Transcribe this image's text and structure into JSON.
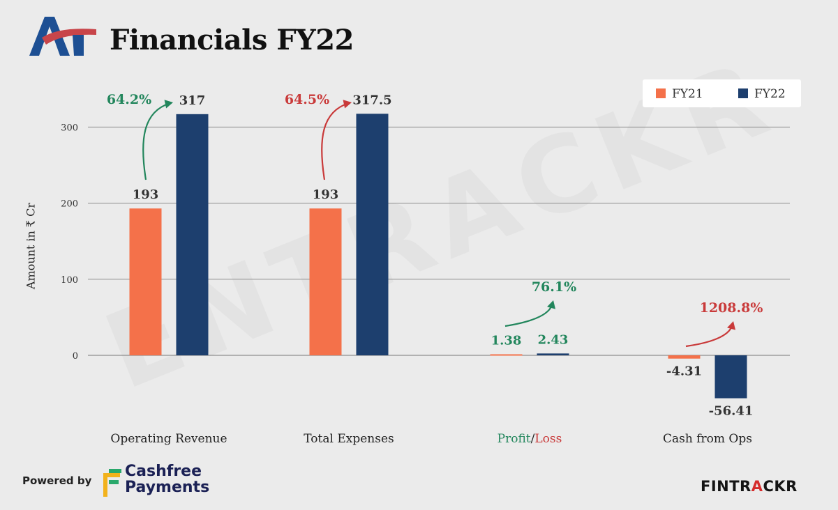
{
  "header": {
    "title": "Financials FY22",
    "logo_name": "AT"
  },
  "legend": [
    {
      "label": "FY21",
      "color": "#f4714a"
    },
    {
      "label": "FY22",
      "color": "#1d3f6e"
    }
  ],
  "footer": {
    "powered_by": "Powered by",
    "sponsor_line1": "Cashfree",
    "sponsor_line2": "Payments",
    "brand_prefix": "FINTR",
    "brand_accent": "A",
    "brand_suffix": "CKR"
  },
  "watermark": "ENTRACKR",
  "colors": {
    "fy21": "#f4714a",
    "fy22": "#1d3f6e",
    "up_good": "#22865c",
    "up_bad": "#c93a3a",
    "axis_text": "#333333"
  },
  "chart_data": {
    "type": "bar",
    "ylabel": "Amount in ₹ Cr",
    "ylim": [
      -75,
      335
    ],
    "yticks": [
      0,
      100,
      200,
      300
    ],
    "grid": true,
    "legend_position": "top-right",
    "categories": [
      "Operating Revenue",
      "Total Expenses",
      "Profit/Loss",
      "Cash from Ops"
    ],
    "series": [
      {
        "name": "FY21",
        "values": [
          193,
          193,
          1.38,
          -4.31
        ],
        "labels": [
          "193",
          "193",
          "1.38",
          "-4.31"
        ]
      },
      {
        "name": "FY22",
        "values": [
          317,
          317.5,
          2.43,
          -56.41
        ],
        "labels": [
          "317",
          "317.5",
          "2.43",
          "-56.41"
        ]
      }
    ],
    "changes": [
      {
        "category": "Operating Revenue",
        "label": "64.2%",
        "tone": "good"
      },
      {
        "category": "Total Expenses",
        "label": "64.5%",
        "tone": "bad"
      },
      {
        "category": "Profit/Loss",
        "label": "76.1%",
        "tone": "good"
      },
      {
        "category": "Cash from Ops",
        "label": "1208.8%",
        "tone": "bad"
      }
    ]
  }
}
